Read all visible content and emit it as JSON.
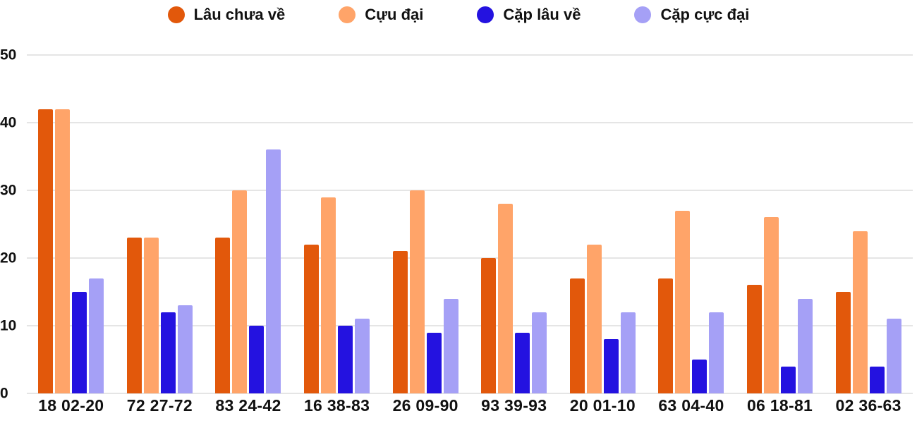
{
  "chart_data": {
    "type": "bar",
    "title": "",
    "xlabel": "",
    "ylabel": "",
    "ylim": [
      0,
      50
    ],
    "yticks": [
      0,
      10,
      20,
      30,
      40,
      50
    ],
    "grid": true,
    "legend_position": "top-center",
    "background_color": "#ffffff",
    "gridline_color": "#e5e5e5",
    "categories": [
      "18 02-20",
      "72 27-72",
      "83 24-42",
      "16 38-83",
      "26 09-90",
      "93 39-93",
      "20 01-10",
      "63 04-40",
      "06 18-81",
      "02 36-63"
    ],
    "series": [
      {
        "name": "Lâu chưa về",
        "color": "#e2580b",
        "values": [
          42,
          23,
          23,
          22,
          21,
          20,
          17,
          17,
          16,
          15
        ]
      },
      {
        "name": "Cựu đại",
        "color": "#ffa469",
        "values": [
          42,
          23,
          30,
          29,
          30,
          28,
          22,
          27,
          26,
          24
        ]
      },
      {
        "name": "Cặp lâu về",
        "color": "#2412e0",
        "values": [
          15,
          12,
          10,
          10,
          9,
          9,
          8,
          5,
          4,
          4
        ]
      },
      {
        "name": "Cặp cực đại",
        "color": "#a5a0f6",
        "values": [
          17,
          13,
          36,
          11,
          14,
          12,
          12,
          12,
          14,
          11
        ]
      }
    ]
  }
}
